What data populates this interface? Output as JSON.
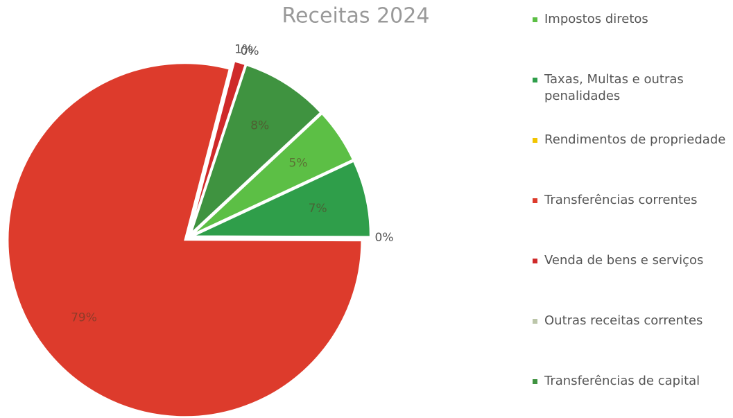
{
  "chart_data": {
    "type": "pie",
    "title": "Receitas 2024",
    "categories": [
      "Impostos diretos",
      "Taxas, Multas e outras penalidades",
      "Rendimentos de propriedade",
      "Transferências correntes",
      "Venda de bens e serviços",
      "Outras receitas correntes",
      "Transferências de capital"
    ],
    "values": [
      5,
      7,
      0,
      79,
      1,
      0,
      8
    ],
    "value_labels": [
      "5%",
      "7%",
      "0%",
      "79%",
      "1%",
      "0%",
      "8%"
    ],
    "colors": [
      "#5cbf45",
      "#2f9e4a",
      "#f2c400",
      "#dd3b2c",
      "#cf2a2a",
      "#bcc6aa",
      "#3f9340"
    ],
    "legend": "right"
  }
}
